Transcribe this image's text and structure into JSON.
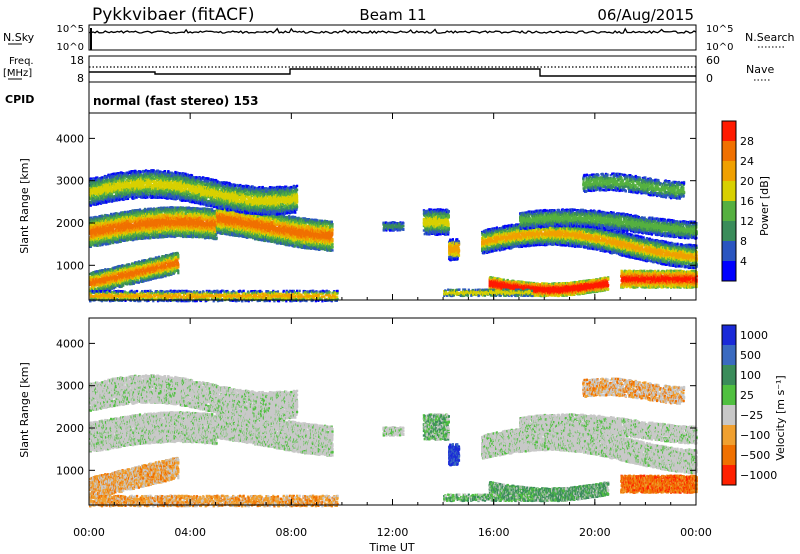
{
  "header": {
    "title": "Pykkvibaer (fitACF)",
    "beam": "Beam 11",
    "date": "06/Aug/2015"
  },
  "top_panels": {
    "nsky_label": "N.Sky",
    "nsky_ticks": [
      "10^5",
      "10^0"
    ],
    "nsearch_label": "N.Search",
    "nsearch_ticks": [
      "10^5",
      "10^0"
    ],
    "freq_label": "Freq.",
    "freq_unit": "[MHz]",
    "freq_ticks": [
      "18",
      "8"
    ],
    "nave_label": "Nave",
    "nave_ticks": [
      "60",
      "0"
    ],
    "cpid_label": "CPID",
    "cpid_value": "normal (fast stereo) 153"
  },
  "chart_data": [
    {
      "type": "heatmap",
      "parameter": "Power",
      "ylabel": "Slant Range [km]",
      "ylim": [
        180,
        4600
      ],
      "yticks": [
        "1000",
        "2000",
        "3000",
        "4000"
      ],
      "colorbar_label": "Power [dB]",
      "colorbar_ticks": [
        "4",
        "8",
        "12",
        "16",
        "20",
        "24",
        "28"
      ],
      "colors": [
        "#0000ff",
        "#2a55c0",
        "#3a8c5a",
        "#55b040",
        "#d8d000",
        "#f0a000",
        "#f07000",
        "#ff1a00"
      ],
      "xticks": [
        "00:00",
        "04:00",
        "08:00",
        "12:00",
        "16:00",
        "20:00",
        "00:00"
      ]
    },
    {
      "type": "heatmap",
      "parameter": "Velocity",
      "ylabel": "Slant Range [km]",
      "ylim": [
        180,
        4600
      ],
      "yticks": [
        "1000",
        "2000",
        "3000",
        "4000"
      ],
      "colorbar_label": "Velocity [m s⁻¹]",
      "colorbar_ticks": [
        "1000",
        "500",
        "100",
        "25",
        "−25",
        "−100",
        "−500",
        "−1000"
      ],
      "colors": [
        "#1a2ad8",
        "#3a6ac0",
        "#3a8c5a",
        "#50c040",
        "#c8c8c8",
        "#f0a030",
        "#f07000",
        "#ff2000"
      ],
      "xticks": [
        "00:00",
        "04:00",
        "08:00",
        "12:00",
        "16:00",
        "20:00",
        "00:00"
      ],
      "xlabel": "Time UT"
    }
  ]
}
